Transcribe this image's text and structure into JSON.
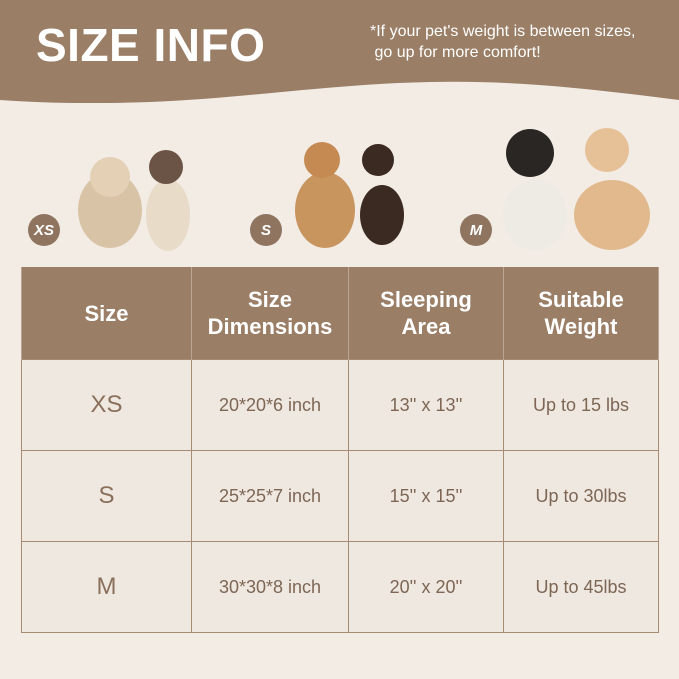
{
  "header": {
    "title": "SIZE INFO",
    "note": "*If your pet's weight is between sizes,\n go up for more comfort!"
  },
  "colors": {
    "brand": "#9a7e66",
    "background": "#f2ece5",
    "cell": "#efe8e1"
  },
  "size_badges": [
    {
      "label": "XS",
      "pets": [
        "persian-cat",
        "siamese-cat"
      ]
    },
    {
      "label": "S",
      "pets": [
        "maine-coon-cat",
        "dachshund"
      ]
    },
    {
      "label": "M",
      "pets": [
        "french-bulldog",
        "poodle"
      ]
    }
  ],
  "table": {
    "headers": [
      "Size",
      "Size\nDimensions",
      "Sleeping\nArea",
      "Suitable\nWeight"
    ],
    "rows": [
      [
        "XS",
        "20*20*6 inch",
        "13'' x 13''",
        "Up to 15 lbs"
      ],
      [
        "S",
        "25*25*7 inch",
        "15'' x 15''",
        "Up to 30lbs"
      ],
      [
        "M",
        "30*30*8 inch",
        "20'' x 20''",
        "Up to 45lbs"
      ]
    ]
  }
}
